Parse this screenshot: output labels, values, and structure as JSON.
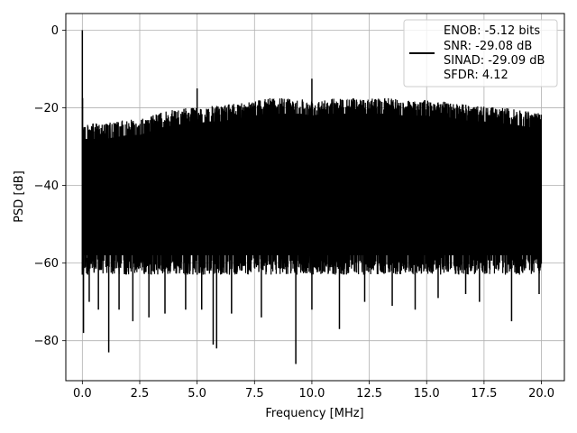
{
  "chart_data": {
    "type": "line",
    "title": "",
    "xlabel": "Frequency [MHz]",
    "ylabel": "PSD [dB]",
    "xlim": [
      -0.72,
      21.0
    ],
    "ylim": [
      -90.3,
      4.3
    ],
    "xticks": [
      0.0,
      2.5,
      5.0,
      7.5,
      10.0,
      12.5,
      15.0,
      17.5,
      20.0
    ],
    "xtick_labels": [
      "0.0",
      "2.5",
      "5.0",
      "7.5",
      "10.0",
      "12.5",
      "15.0",
      "17.5",
      "20.0"
    ],
    "yticks": [
      0,
      -20,
      -40,
      -60,
      -80
    ],
    "ytick_labels": [
      "0",
      "−20",
      "−40",
      "−60",
      "−80"
    ],
    "grid": true,
    "legend_position": "top-right",
    "legend_lines": [
      "ENOB: -5.12 bits",
      "SNR: -29.08 dB",
      "SINAD: -29.09 dB",
      "SFDR: 4.12"
    ],
    "series": [
      {
        "color": "#000000",
        "x_range": [
          0.0,
          20.0
        ],
        "upper_envelope_x": [
          0.0,
          0.1,
          0.5,
          1.0,
          1.5,
          2.0,
          2.5,
          3.0,
          3.5,
          4.0,
          4.5,
          5.0,
          5.5,
          6.0,
          6.5,
          7.0,
          7.5,
          8.0,
          8.5,
          9.0,
          9.5,
          10.0,
          10.5,
          11.0,
          11.5,
          12.0,
          12.5,
          13.0,
          13.5,
          14.0,
          14.5,
          15.0,
          15.5,
          16.0,
          16.5,
          17.0,
          17.5,
          18.0,
          18.5,
          19.0,
          19.5,
          20.0
        ],
        "upper_envelope_y": [
          -22,
          -24,
          -24,
          -24,
          -23.5,
          -23,
          -23,
          -22,
          -21,
          -20.5,
          -20,
          -20,
          -19.5,
          -19.5,
          -19,
          -18.5,
          -18,
          -17.5,
          -17.5,
          -17.5,
          -17.5,
          -18,
          -17.5,
          -17.5,
          -17.5,
          -17.5,
          -17.5,
          -17.5,
          -17.5,
          -18,
          -18,
          -18,
          -18.5,
          -18.5,
          -19,
          -19.5,
          -19.5,
          -20,
          -20,
          -20.5,
          -21,
          -21
        ],
        "lower_envelope_y": -63,
        "spikes": [
          {
            "x": 0.0,
            "y": 0
          },
          {
            "x": 0.01,
            "y": -17.5
          },
          {
            "x": 5.0,
            "y": -15
          },
          {
            "x": 10.0,
            "y": -12.5
          }
        ],
        "dips": [
          {
            "x": 0.05,
            "y": -78
          },
          {
            "x": 0.3,
            "y": -70
          },
          {
            "x": 0.7,
            "y": -72
          },
          {
            "x": 1.15,
            "y": -83
          },
          {
            "x": 1.6,
            "y": -72
          },
          {
            "x": 2.2,
            "y": -75
          },
          {
            "x": 2.9,
            "y": -74
          },
          {
            "x": 3.6,
            "y": -73
          },
          {
            "x": 4.5,
            "y": -72
          },
          {
            "x": 5.2,
            "y": -72
          },
          {
            "x": 5.7,
            "y": -81
          },
          {
            "x": 5.85,
            "y": -82
          },
          {
            "x": 6.5,
            "y": -73
          },
          {
            "x": 7.8,
            "y": -74
          },
          {
            "x": 9.3,
            "y": -86
          },
          {
            "x": 10.0,
            "y": -72
          },
          {
            "x": 11.2,
            "y": -77
          },
          {
            "x": 12.3,
            "y": -70
          },
          {
            "x": 13.5,
            "y": -71
          },
          {
            "x": 14.5,
            "y": -72
          },
          {
            "x": 15.5,
            "y": -69
          },
          {
            "x": 16.7,
            "y": -68
          },
          {
            "x": 17.3,
            "y": -70
          },
          {
            "x": 18.7,
            "y": -75
          },
          {
            "x": 19.9,
            "y": -68
          }
        ]
      }
    ]
  }
}
